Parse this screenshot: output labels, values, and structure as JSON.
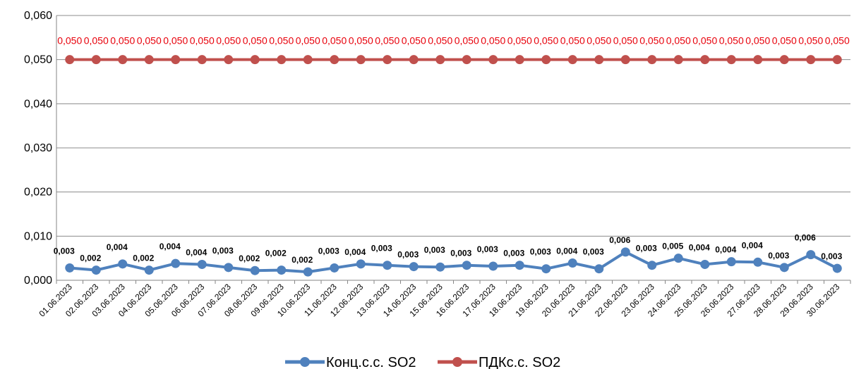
{
  "chart_data": {
    "type": "line",
    "title": "",
    "xlabel": "",
    "ylabel": "",
    "ylim": [
      0,
      0.06
    ],
    "yticks": [
      "0,000",
      "0,010",
      "0,020",
      "0,030",
      "0,040",
      "0,050",
      "0,060"
    ],
    "grid": "horizontal",
    "legend_position": "bottom",
    "categories": [
      "01.06.2023",
      "02.06.2023",
      "03.06.2023",
      "04.06.2023",
      "05.06.2023",
      "06.06.2023",
      "07.06.2023",
      "08.06.2023",
      "09.06.2023",
      "10.06.2023",
      "11.06.2023",
      "12.06.2023",
      "13.06.2023",
      "14.06.2023",
      "15.06.2023",
      "16.06.2023",
      "17.06.2023",
      "18.06.2023",
      "19.06.2023",
      "20.06.2023",
      "21.06.2023",
      "22.06.2023",
      "23.06.2023",
      "24.06.2023",
      "25.06.2023",
      "26.06.2023",
      "27.06.2023",
      "28.06.2023",
      "29.06.2023",
      "30.06.2023"
    ],
    "series": [
      {
        "name": "Конц.с.с. SO2",
        "color": "#4f81bd",
        "values": [
          0.0028,
          0.0023,
          0.0037,
          0.0023,
          0.0038,
          0.0036,
          0.0029,
          0.0022,
          0.0023,
          0.0019,
          0.0028,
          0.0037,
          0.0034,
          0.0031,
          0.003,
          0.0034,
          0.0032,
          0.0034,
          0.0026,
          0.0039,
          0.0026,
          0.0064,
          0.0034,
          0.005,
          0.0036,
          0.0042,
          0.0041,
          0.0029,
          0.0058,
          0.0027
        ],
        "labels": [
          "0,003",
          "0,002",
          "0,004",
          "0,002",
          "0,004",
          "0,004",
          "0,003",
          "0,002",
          "0,002",
          "0,002",
          "0,003",
          "0,004",
          "0,003",
          "0,003",
          "0,003",
          "0,003",
          "0,003",
          "0,003",
          "0,003",
          "0,004",
          "0,003",
          "0,006",
          "0,003",
          "0,005",
          "0,004",
          "0,004",
          "0,004",
          "0,003",
          "0,006",
          "0,003"
        ]
      },
      {
        "name": "ПДКс.с. SO2",
        "color": "#c0504d",
        "label_color": "#e8000b",
        "values": [
          0.05,
          0.05,
          0.05,
          0.05,
          0.05,
          0.05,
          0.05,
          0.05,
          0.05,
          0.05,
          0.05,
          0.05,
          0.05,
          0.05,
          0.05,
          0.05,
          0.05,
          0.05,
          0.05,
          0.05,
          0.05,
          0.05,
          0.05,
          0.05,
          0.05,
          0.05,
          0.05,
          0.05,
          0.05,
          0.05
        ],
        "labels": [
          "0,050",
          "0,050",
          "0,050",
          "0,050",
          "0,050",
          "0,050",
          "0,050",
          "0,050",
          "0,050",
          "0,050",
          "0,050",
          "0,050",
          "0,050",
          "0,050",
          "0,050",
          "0,050",
          "0,050",
          "0,050",
          "0,050",
          "0,050",
          "0,050",
          "0,050",
          "0,050",
          "0,050",
          "0,050",
          "0,050",
          "0,050",
          "0,050",
          "0,050",
          "0,050"
        ]
      }
    ]
  }
}
